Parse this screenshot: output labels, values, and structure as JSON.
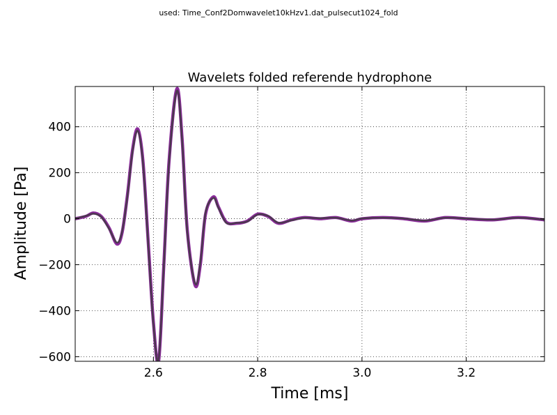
{
  "chart_data": {
    "type": "line",
    "suptitle": "used: Time_Conf2Domwavelet10kHzv1.dat_pulsecut1024_fold",
    "title": "Wavelets folded referende hydrophone",
    "xlabel": "Time [ms]",
    "ylabel": "Amplitude [Pa]",
    "xlim": [
      2.45,
      3.35
    ],
    "ylim": [
      -620,
      575
    ],
    "xticks": [
      2.6,
      2.8,
      3.0,
      3.2
    ],
    "xtick_labels": [
      "2.6",
      "2.8",
      "3.0",
      "3.2"
    ],
    "yticks": [
      -600,
      -400,
      -200,
      0,
      200,
      400
    ],
    "ytick_labels": [
      "−600",
      "−400",
      "−200",
      "0",
      "200",
      "400"
    ],
    "grid": true,
    "series": [
      {
        "color": "#8b2b9b",
        "x": [
          2.45,
          2.47,
          2.485,
          2.5,
          2.515,
          2.53,
          2.54,
          2.55,
          2.56,
          2.57,
          2.58,
          2.59,
          2.6,
          2.61,
          2.62,
          2.63,
          2.645,
          2.655,
          2.665,
          2.68,
          2.69,
          2.7,
          2.715,
          2.725,
          2.74,
          2.76,
          2.78,
          2.8,
          2.82,
          2.84,
          2.865,
          2.89,
          2.92,
          2.95,
          2.98,
          3.0,
          3.04,
          3.08,
          3.12,
          3.16,
          3.2,
          3.25,
          3.3,
          3.35
        ],
        "y": [
          0,
          10,
          25,
          10,
          -40,
          -110,
          -60,
          100,
          300,
          390,
          250,
          -100,
          -450,
          -620,
          -200,
          250,
          565,
          350,
          -50,
          -290,
          -200,
          20,
          95,
          50,
          -15,
          -20,
          -10,
          20,
          10,
          -20,
          -5,
          5,
          0,
          5,
          -10,
          0,
          5,
          0,
          -10,
          5,
          0,
          -5,
          5,
          -5
        ]
      },
      {
        "color": "#3c3c3c",
        "x": [
          2.45,
          2.47,
          2.485,
          2.5,
          2.515,
          2.53,
          2.54,
          2.55,
          2.56,
          2.57,
          2.58,
          2.59,
          2.6,
          2.61,
          2.62,
          2.63,
          2.645,
          2.655,
          2.665,
          2.68,
          2.69,
          2.7,
          2.715,
          2.725,
          2.74,
          2.76,
          2.78,
          2.8,
          2.82,
          2.84,
          2.865,
          2.89,
          2.92,
          2.95,
          2.98,
          3.0,
          3.04,
          3.08,
          3.12,
          3.16,
          3.2,
          3.25,
          3.3,
          3.35
        ],
        "y": [
          0,
          12,
          22,
          8,
          -44,
          -104,
          -56,
          94,
          292,
          382,
          242,
          -108,
          -458,
          -612,
          -208,
          242,
          556,
          342,
          -58,
          -282,
          -192,
          26,
          90,
          46,
          -18,
          -18,
          -12,
          18,
          12,
          -18,
          -7,
          4,
          2,
          4,
          -8,
          1,
          4,
          1,
          -8,
          4,
          1,
          -4,
          4,
          -4
        ]
      }
    ]
  }
}
